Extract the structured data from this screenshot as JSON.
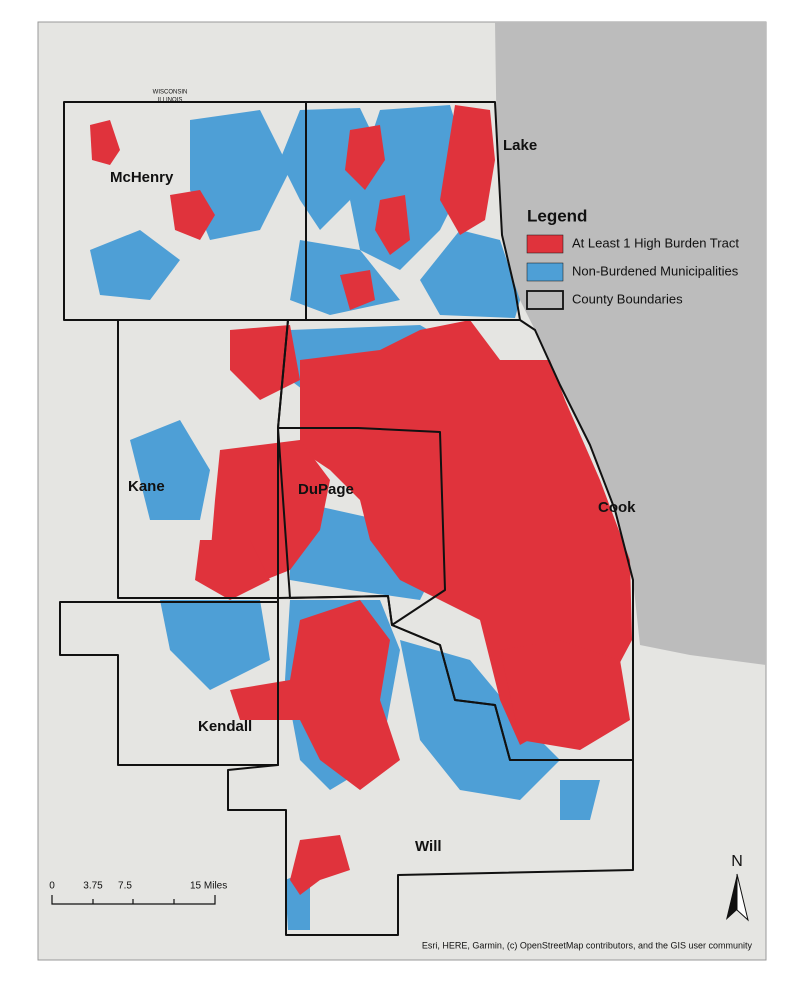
{
  "map": {
    "state_labels": [
      "WISCONSIN",
      "ILLINOIS"
    ],
    "counties": [
      {
        "label": "McHenry"
      },
      {
        "label": "Lake"
      },
      {
        "label": "Kane"
      },
      {
        "label": "DuPage"
      },
      {
        "label": "Cook"
      },
      {
        "label": "Kendall"
      },
      {
        "label": "Will"
      }
    ],
    "legend": {
      "title": "Legend",
      "items": [
        {
          "label": "At Least 1 High Burden Tract",
          "color": "#e0333c"
        },
        {
          "label": "Non-Burdened Municipalities",
          "color": "#4e9fd6"
        },
        {
          "label": "County Boundaries",
          "color": "none"
        }
      ]
    },
    "scale_bar": {
      "labels": [
        "0",
        "3.75",
        "7.5",
        "15 Miles"
      ]
    },
    "north_arrow": "N",
    "attribution": "Esri, HERE, Garmin, (c) OpenStreetMap contributors, and the GIS user community"
  }
}
